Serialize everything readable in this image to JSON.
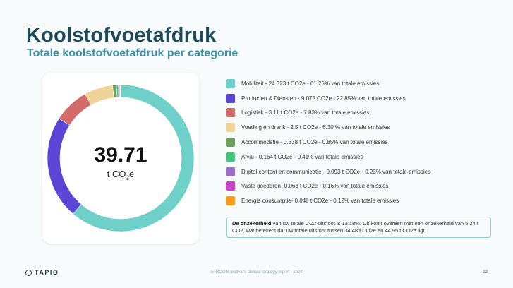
{
  "header": {
    "title": "Koolstofvoetafdruk",
    "subtitle": "Totale koolstofvoetafdruk per categorie"
  },
  "donut": {
    "total": "39.71",
    "unit_prefix": "t CO",
    "unit_sub": "2",
    "unit_suffix": "e"
  },
  "chart_data": {
    "type": "pie",
    "title": "Totale koolstofvoetafdruk per categorie",
    "total": 39.71,
    "unit": "t CO2e",
    "legend_position": "right",
    "slices": [
      {
        "label": "Mobiliteit",
        "value": 24.323,
        "percent": 61.25,
        "color": "#6fcfc9",
        "text": "Mobiliteit - 24.323  t CO2e - 61.25% van totale emissies"
      },
      {
        "label": "Producten & Diensten",
        "value": 9.075,
        "percent": 22.85,
        "color": "#5b46d6",
        "text": "Producten & Diensten - 9.075 CO2e - 22.85% van totale emissies"
      },
      {
        "label": "Logistiek",
        "value": 3.11,
        "percent": 7.83,
        "color": "#d36b6b",
        "text": "Logistiek - 3.11 t CO2e - 7.83% van totale emissies"
      },
      {
        "label": "Voeding en drank",
        "value": 2.5,
        "percent": 6.3,
        "color": "#efd49a",
        "text": "Voeding en drank - 2.5 t CO2e - 6.30 % van totale emissies"
      },
      {
        "label": "Accommodatie",
        "value": 0.338,
        "percent": 0.85,
        "color": "#6f9e5f",
        "text": "Accommodatie - 0.338 t CO2e - 0.85% van totale emissies"
      },
      {
        "label": "Afval",
        "value": 0.164,
        "percent": 0.41,
        "color": "#43c47a",
        "text": "Afval - 0.164 t CO2e - 0.41% van totale emissies"
      },
      {
        "label": "Digital content en communicatie",
        "value": 0.093,
        "percent": 0.23,
        "color": "#9b6fc6",
        "text": "Digital content en communicatie - 0.093 t CO2e - 0.23% van totale emissies"
      },
      {
        "label": "Vaste goederen",
        "value": 0.063,
        "percent": 0.16,
        "color": "#cc42c8",
        "text": "Vaste goederen- 0.063 t CO2e - 0.16% van totale emissies"
      },
      {
        "label": "Energie consumptie",
        "value": 0.048,
        "percent": 0.12,
        "color": "#f59a1e",
        "text": "Energie consumptie- 0.048 t CO2e - 0.12% van totale emissies"
      }
    ]
  },
  "note": {
    "bold": "De onzekerheid",
    "text": " van uw totale CO2-uitstoot is 13.18%. Dit komt overeen met een onzekerheid van 5.24  t CO2, wat betekent dat uw totale uitstoot tussen 34.48 t CO2e en 44.95 t CO2e ligt."
  },
  "footer": {
    "logo_text": "TAPIO",
    "center_text": "STROOM festival's  climate strategy report - 2024",
    "page_number": "22"
  }
}
